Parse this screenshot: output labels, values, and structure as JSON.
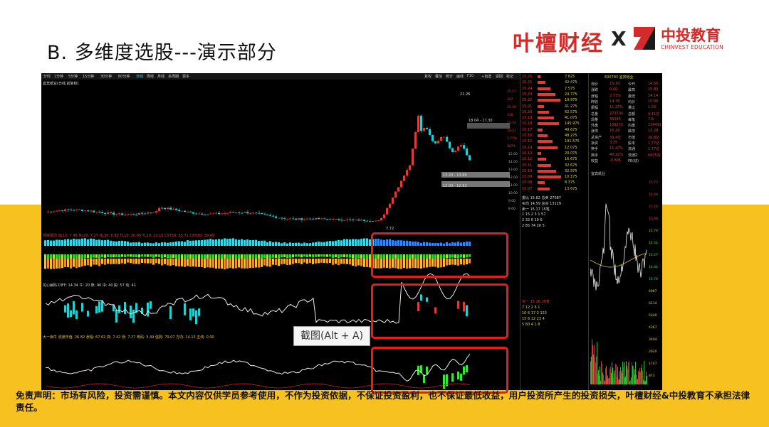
{
  "slide": {
    "title": "B. 多维度选股---演示部分",
    "brand_left": "叶檀财经",
    "brand_x": "X",
    "brand_right": "中投教育",
    "brand_right_sub": "CHINVEST EDUCATION",
    "disclaimer": "免责声明：市场有风险，投资需谨慎。本文内容仅供学员参考使用，不作为投资依据，不保证投资盈利，也不保证最低收益，用户投资所产生的投资损失，叶檀财经&中投教育不承担法律责任。",
    "tooltip": "截图(Alt + A)"
  },
  "colors": {
    "red": "#e51d1d",
    "yellow": "#f7c21f",
    "up": "#e03a3a",
    "down": "#27d0d0"
  },
  "terminal": {
    "toolbar_left": [
      "分时",
      "1分钟",
      "5分钟",
      "15分钟",
      "30分钟",
      "60分钟",
      "日线",
      "周线",
      "月线",
      "多周期",
      "更多"
    ],
    "toolbar_right": [
      "复权",
      "叠加",
      "统计",
      "画线",
      "F10",
      "+自选",
      "返回",
      "标记"
    ],
    "chart_title": "宜宾纸业(日线,前复权)",
    "annotations": {
      "high": "21.26",
      "low": "7.72",
      "box1": "18.04 - 17.30",
      "box2": "13.20 - 13.69",
      "box3": "12.00 - 12.93"
    },
    "ind1": "顶底驱动  HL10: 7.45  HL20: 7.27  HL30: 6.80  TL10: 20.09  TL20: 12.16  CST30: 53.71  CXH30: 39.49",
    "ind2": "龙心解码 DIFF: 14.34  牛: 20  熊: 96  中: 40  股: 57  动: 41",
    "ind3": "大一病牛  流通市值: 26.82  涨幅: 67.62  高: 7.42  低: 7.27  筹码: 3.49  强弱: 79.07  方向: 14.13  五线: 0.00",
    "price_axis": [
      "15.17",
      "327",
      "15.16",
      "318",
      "15.14",
      "14.21",
      "2.71%",
      "5979",
      "15.00",
      "14.00",
      "13.00",
      "12.00",
      "11.00",
      "10.00",
      "9.00",
      "8.00"
    ],
    "order_book": {
      "asks": [
        [
          "15.26",
          "7.625"
        ],
        [
          "15.25",
          "42.475"
        ],
        [
          "15.24",
          "7.575"
        ],
        [
          "15.23",
          "24.775"
        ],
        [
          "15.22",
          "19.975"
        ],
        [
          "15.21",
          "41.275"
        ],
        [
          "15.20",
          "62.575"
        ],
        [
          "15.19",
          "41.075"
        ],
        [
          "15.18",
          "145.975"
        ],
        [
          "15.17",
          "49.675"
        ],
        [
          "15.16",
          "48.275"
        ],
        [
          "15.15",
          "191.575"
        ],
        [
          "15.14",
          "12.075"
        ],
        [
          "15.13",
          "20.075"
        ],
        [
          "15.12",
          "16.675"
        ],
        [
          "15.11",
          "32.675"
        ],
        [
          "15.10",
          "32.975"
        ],
        [
          "15.09",
          "10.175"
        ],
        [
          "15.08",
          "8.375"
        ],
        [
          "15.07",
          "13.675"
        ]
      ],
      "summary": [
        [
          "委比",
          "15.82",
          "总卖",
          "27087"
        ],
        [
          "买均",
          "14.59",
          "总买",
          "13129"
        ],
        [
          "卖一",
          "15.17",
          "15笔"
        ]
      ],
      "grid1": [
        [
          "1",
          "15",
          "2",
          "3",
          "1",
          "57"
        ],
        [
          "2",
          "32",
          "6",
          "19",
          "6"
        ],
        [
          "2",
          "85",
          "74",
          "20",
          "5"
        ]
      ],
      "trade_header": [
        "买一",
        "15.16",
        "19笔"
      ],
      "grid2": [
        [
          "7",
          "12",
          "2",
          "6",
          "1"
        ],
        [
          "10",
          "6",
          "17",
          "3",
          "123"
        ],
        [
          "15",
          "6",
          "12",
          "23",
          "4"
        ],
        [
          "5",
          "60",
          "4",
          "1",
          "8"
        ]
      ]
    },
    "quote": {
      "code_name": "600793 宜宾纸业",
      "rows": [
        [
          "现价",
          "15.16",
          "今开",
          "14.55"
        ],
        [
          "涨跌",
          "0.40",
          "最高",
          "15.80"
        ],
        [
          "涨幅",
          "2.71%",
          "最低",
          "14.14"
        ],
        [
          "昨收",
          "14.76",
          "均价",
          "15.00"
        ],
        [
          "振幅",
          "11.25%",
          "量比",
          "1.03"
        ],
        [
          "总量",
          "273704",
          "总额",
          "4.11亿"
        ],
        [
          "现量",
          "36245",
          "每笔",
          "7.6"
        ],
        [
          "外盘",
          "139273",
          "内盘",
          "134431"
        ],
        [
          "涨停",
          "16.24",
          "跌停",
          "13.28"
        ],
        [
          "总资产",
          "33.4亿",
          "市值",
          "26.8亿"
        ],
        [
          "净资",
          "3.35",
          "股本",
          "1.77亿"
        ],
        [
          "换手",
          "15.47%",
          "流通",
          "1.77亿"
        ],
        [
          "换手",
          "40.22%",
          "流通Z",
          "6805万"
        ],
        [
          "收益",
          "-0.605",
          "PE(动)",
          ""
        ]
      ],
      "mini_title": "宜宾纸业",
      "mini_axis": [
        "15.73",
        "15.48",
        "15.26",
        "15.00",
        "14.76",
        "14.51",
        "14.27",
        "14.02",
        "13.78",
        "6987",
        "6114",
        "5240",
        "4367",
        "3494",
        "2620",
        "1747",
        "873"
      ]
    }
  }
}
